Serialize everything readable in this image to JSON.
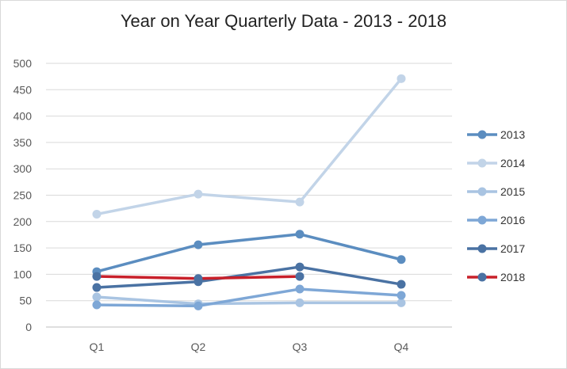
{
  "chart_data": {
    "type": "line",
    "title": "Year on Year Quarterly Data - 2013 - 2018",
    "xlabel": "",
    "ylabel": "",
    "categories": [
      "Q1",
      "Q2",
      "Q3",
      "Q4"
    ],
    "ylim": [
      0,
      500
    ],
    "yticks": [
      0,
      50,
      100,
      150,
      200,
      250,
      300,
      350,
      400,
      450,
      500
    ],
    "grid": true,
    "legend": "right",
    "series": [
      {
        "name": "2013",
        "color": "#5b8dc0",
        "values": [
          105,
          156,
          176,
          128
        ]
      },
      {
        "name": "2014",
        "color": "#c2d4e8",
        "values": [
          214,
          252,
          237,
          471
        ]
      },
      {
        "name": "2015",
        "color": "#a9c4e2",
        "values": [
          57,
          44,
          46,
          46
        ]
      },
      {
        "name": "2016",
        "color": "#7ea7d6",
        "values": [
          42,
          40,
          72,
          60
        ]
      },
      {
        "name": "2017",
        "color": "#4a72a3",
        "values": [
          75,
          86,
          114,
          81
        ]
      },
      {
        "name": "2018",
        "color": "#c8202a",
        "marker_color": "#4a72a3",
        "values": [
          96,
          92,
          96,
          null
        ]
      }
    ]
  }
}
